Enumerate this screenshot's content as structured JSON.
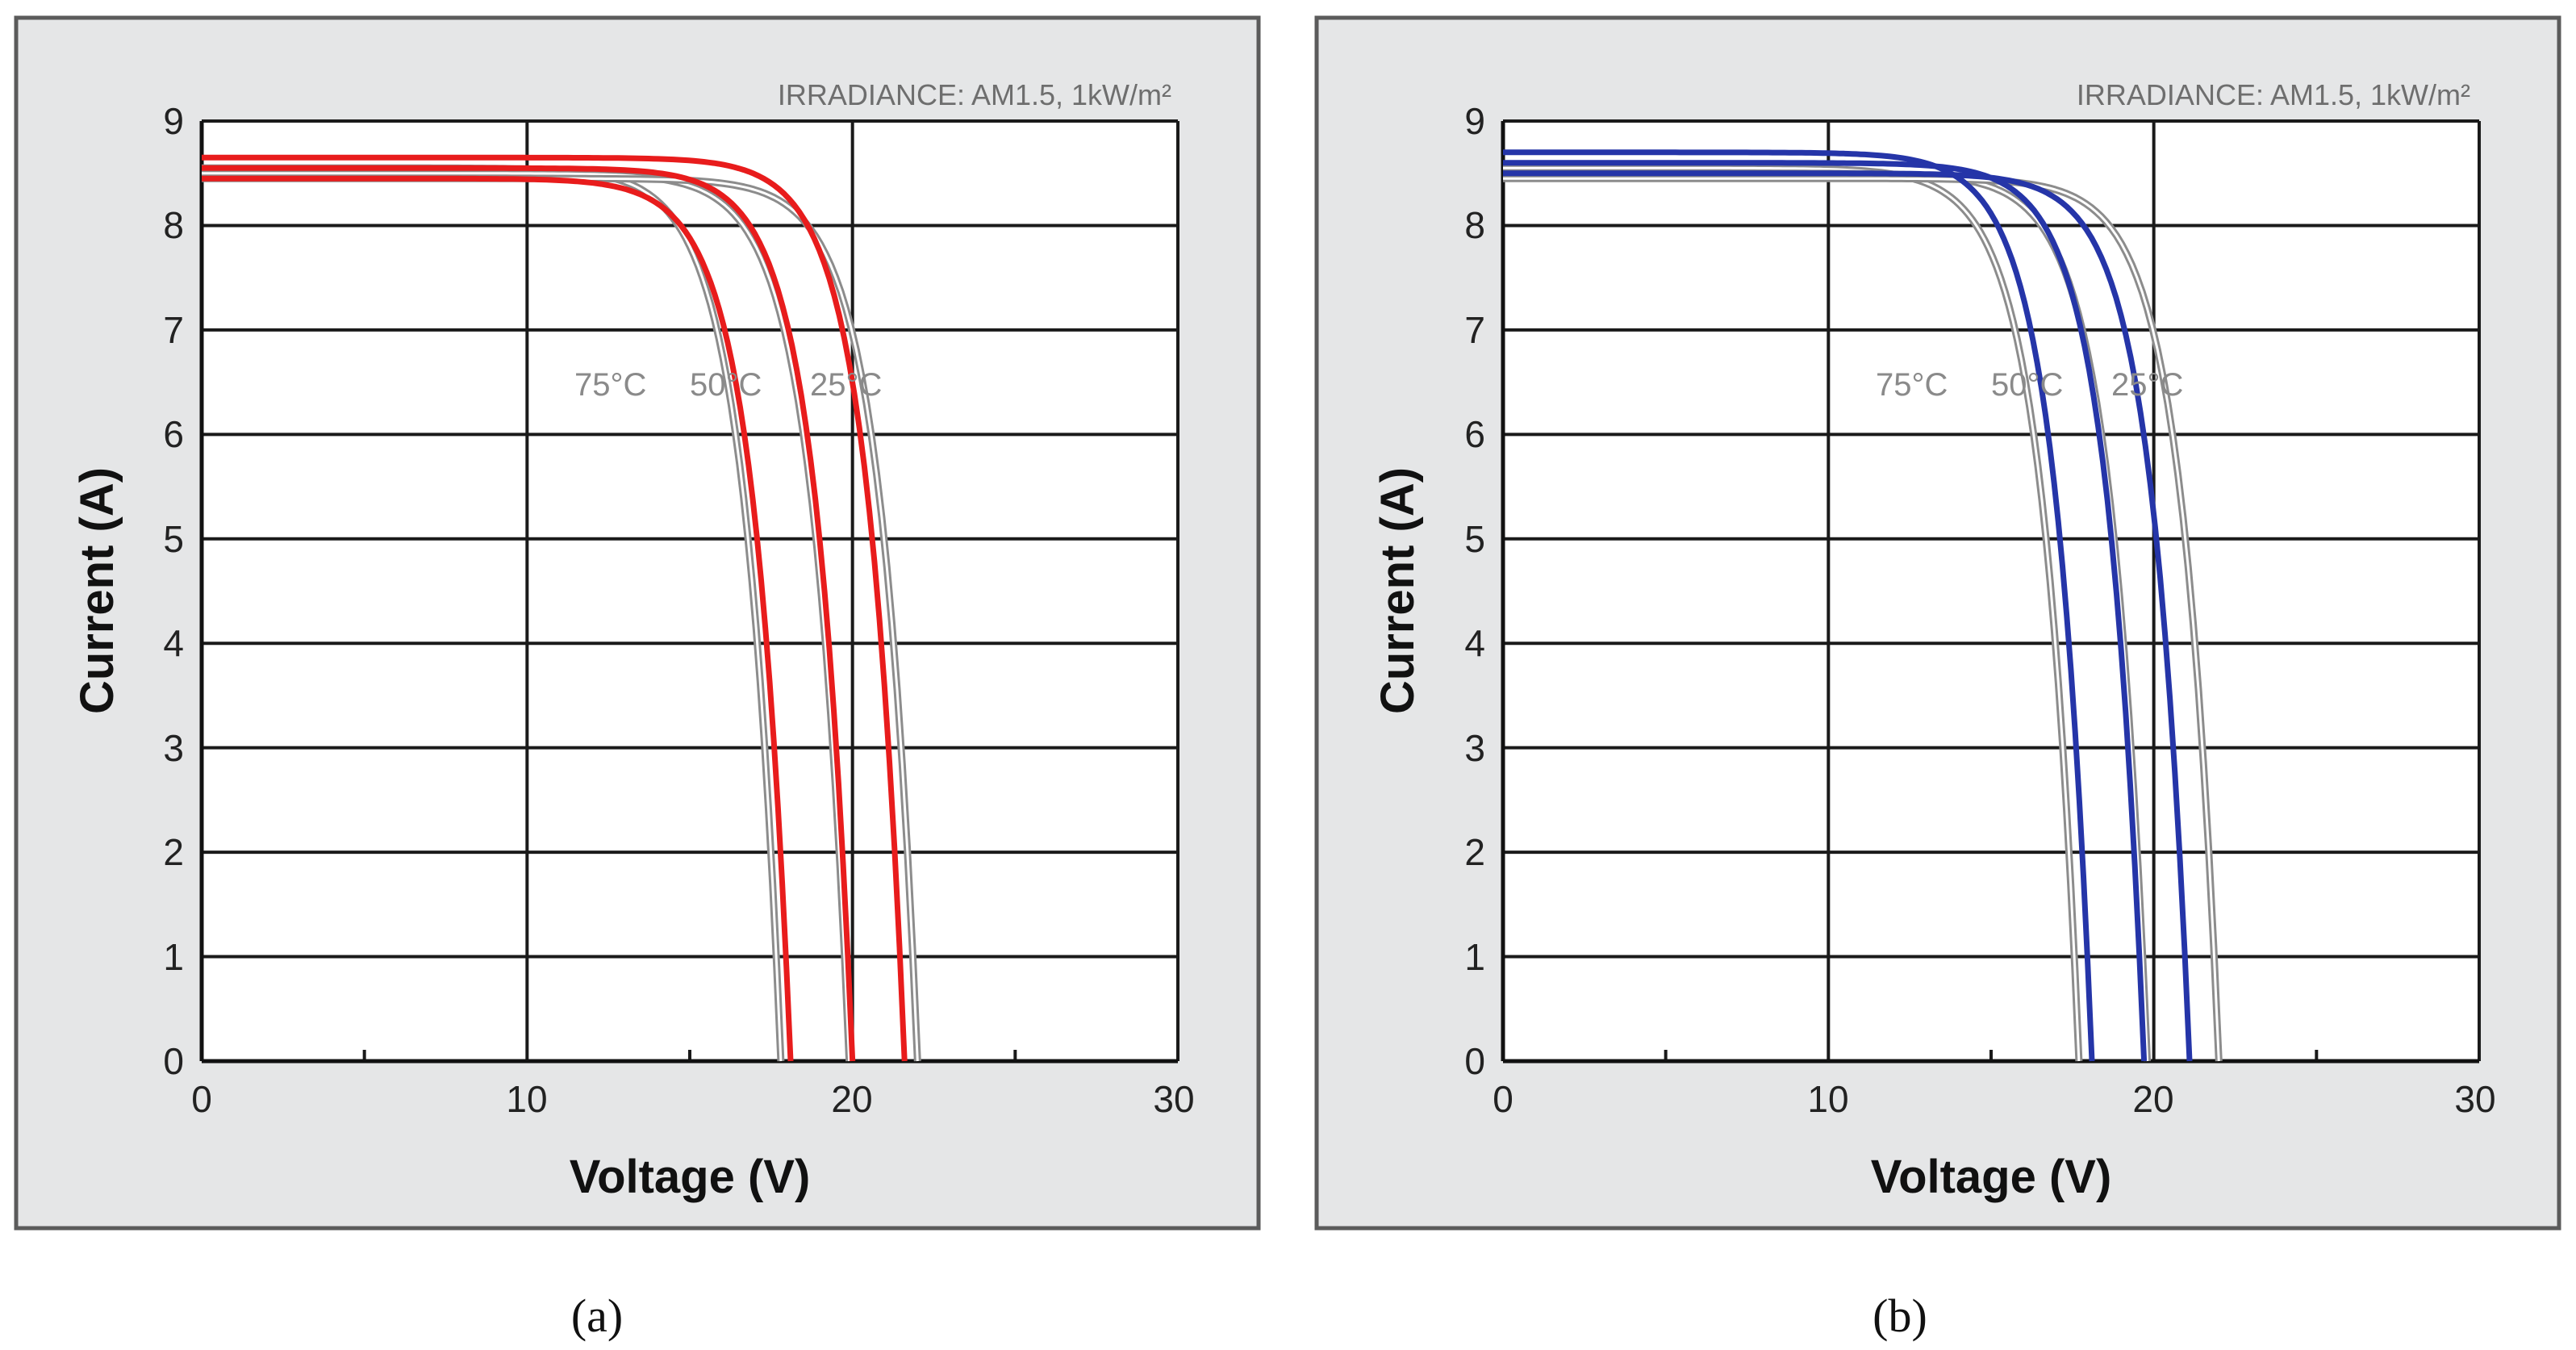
{
  "chart_data": [
    {
      "type": "line",
      "panel": "a",
      "caption": "(a)",
      "title": "IRRADIANCE: AM1.5, 1kW/m²",
      "xlabel": "Voltage (V)",
      "ylabel": "Current (A)",
      "xlim": [
        0,
        30
      ],
      "ylim": [
        0,
        9
      ],
      "xticks": [
        "0",
        "10",
        "20",
        "30"
      ],
      "yticks": [
        "0",
        "1",
        "2",
        "3",
        "4",
        "5",
        "6",
        "7",
        "8",
        "9"
      ],
      "grid": true,
      "reference_color": "#8c8c8c",
      "fit_color": "#e81c1c",
      "annotations": [
        "75°C",
        "50°C",
        "25°C"
      ],
      "series": [
        {
          "name": "75°C",
          "isc_ref": 8.55,
          "voc_ref": 17.8,
          "isc_fit": 8.45,
          "voc_fit": 18.1
        },
        {
          "name": "50°C",
          "isc_ref": 8.5,
          "voc_ref": 19.9,
          "isc_fit": 8.55,
          "voc_fit": 20.0
        },
        {
          "name": "25°C",
          "isc_ref": 8.45,
          "voc_ref": 22.0,
          "isc_fit": 8.65,
          "voc_fit": 21.6
        }
      ]
    },
    {
      "type": "line",
      "panel": "b",
      "caption": "(b)",
      "title": "IRRADIANCE: AM1.5, 1kW/m²",
      "xlabel": "Voltage (V)",
      "ylabel": "Current (A)",
      "xlim": [
        0,
        30
      ],
      "ylim": [
        0,
        9
      ],
      "xticks": [
        "0",
        "10",
        "20",
        "30"
      ],
      "yticks": [
        "0",
        "1",
        "2",
        "3",
        "4",
        "5",
        "6",
        "7",
        "8",
        "9"
      ],
      "grid": true,
      "reference_color": "#8c8c8c",
      "fit_color": "#2535a8",
      "annotations": [
        "75°C",
        "50°C",
        "25°C"
      ],
      "series": [
        {
          "name": "75°C",
          "isc_ref": 8.55,
          "voc_ref": 17.7,
          "isc_fit": 8.7,
          "voc_fit": 18.1
        },
        {
          "name": "50°C",
          "isc_ref": 8.5,
          "voc_ref": 19.8,
          "isc_fit": 8.6,
          "voc_fit": 19.7
        },
        {
          "name": "25°C",
          "isc_ref": 8.45,
          "voc_ref": 22.0,
          "isc_fit": 8.5,
          "voc_fit": 21.1
        }
      ]
    }
  ]
}
